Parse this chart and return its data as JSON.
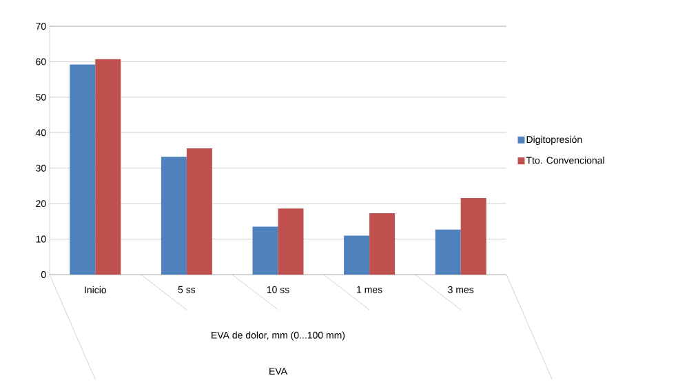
{
  "chart_data": {
    "type": "bar",
    "categories": [
      "Inicio",
      "5 ss",
      "10 ss",
      "1 mes",
      "3 mes"
    ],
    "series": [
      {
        "name": "Digitopresión",
        "color": "#4f81bd",
        "values": [
          59.2,
          33.2,
          13.5,
          11.0,
          12.7
        ]
      },
      {
        "name": "Tto. Convencional",
        "color": "#c0504d",
        "values": [
          60.7,
          35.6,
          18.6,
          17.3,
          21.6
        ]
      }
    ],
    "xlabel": "EVA de dolor, mm (0...100 mm)",
    "annotations": [
      "EVA"
    ],
    "ylim": [
      0,
      70
    ],
    "yticks": [
      0,
      10,
      20,
      30,
      40,
      50,
      60,
      70
    ],
    "grid": "y",
    "legend": "right"
  }
}
